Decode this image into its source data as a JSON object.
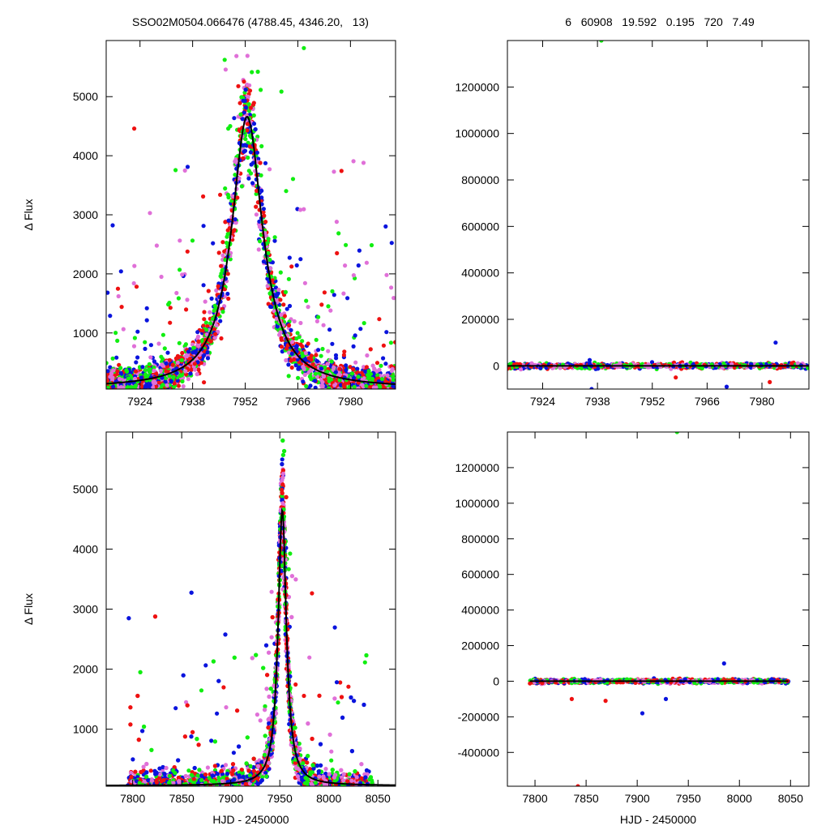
{
  "header": {
    "title_left": "SSO02M0504.066476 (4788.45, 4346.20,   13)",
    "title_right": "6   60908   19.592   0.195   720   7.49"
  },
  "colors": {
    "red": "#ee1111",
    "blue": "#0a14dd",
    "green": "#11ee11",
    "pink": "#e070d8",
    "model": "#000000"
  },
  "chart_data": [
    {
      "type": "scatter",
      "id": "top-left",
      "title": "",
      "xlabel": "",
      "ylabel": "Δ Flux",
      "xlim": [
        7915,
        7992
      ],
      "ylim": [
        50,
        5950
      ],
      "xticks": [
        7924,
        7938,
        7952,
        7966,
        7980
      ],
      "yticks": [
        1000,
        2000,
        3000,
        4000,
        5000
      ],
      "model": {
        "shape": "lorentzian",
        "t0": 7952.5,
        "peak": 4600,
        "baseline": 60,
        "half_width": 5.0
      },
      "series_colors": [
        "red",
        "blue",
        "green",
        "pink"
      ],
      "note": "dense photometric points"
    },
    {
      "type": "scatter",
      "id": "top-right",
      "title": "",
      "xlabel": "",
      "ylabel": "",
      "xlim": [
        7915,
        7992
      ],
      "ylim": [
        -100000,
        1400000
      ],
      "xticks": [
        7924,
        7938,
        7952,
        7966,
        7980
      ],
      "yticks": [
        0,
        200000,
        400000,
        600000,
        800000,
        1000000,
        1200000
      ],
      "outliers": [
        {
          "x": 7939,
          "y": 1400000,
          "color": "green"
        },
        {
          "x": 7936.5,
          "y": -100000,
          "color": "blue"
        },
        {
          "x": 7971,
          "y": -90000,
          "color": "blue"
        },
        {
          "x": 7983.5,
          "y": 100000,
          "color": "blue"
        },
        {
          "x": 7982,
          "y": -70000,
          "color": "red"
        },
        {
          "x": 7936,
          "y": 25000,
          "color": "blue"
        },
        {
          "x": 7958,
          "y": -50000,
          "color": "red"
        }
      ]
    },
    {
      "type": "scatter",
      "id": "bottom-left",
      "title": "",
      "xlabel": "HJD - 2450000",
      "ylabel": "Δ Flux",
      "xlim": [
        7773,
        8068
      ],
      "ylim": [
        50,
        5950
      ],
      "xticks": [
        7800,
        7850,
        7900,
        7950,
        8000,
        8050
      ],
      "yticks": [
        1000,
        2000,
        3000,
        4000,
        5000
      ],
      "model": {
        "shape": "lorentzian",
        "t0": 7952.5,
        "peak": 4600,
        "baseline": 60,
        "half_width": 5.0
      },
      "data_range": [
        7795,
        8045
      ],
      "series_colors": [
        "red",
        "blue",
        "green",
        "pink"
      ]
    },
    {
      "type": "scatter",
      "id": "bottom-right",
      "title": "",
      "xlabel": "HJD - 2450000",
      "ylabel": "",
      "xlim": [
        7773,
        8068
      ],
      "ylim": [
        -590000,
        1400000
      ],
      "xticks": [
        7800,
        7850,
        7900,
        7950,
        8000,
        8050
      ],
      "yticks": [
        -400000,
        -200000,
        0,
        200000,
        400000,
        600000,
        800000,
        1000000,
        1200000
      ],
      "outliers": [
        {
          "x": 7939,
          "y": 1400000,
          "color": "green"
        },
        {
          "x": 7842,
          "y": -590000,
          "color": "red"
        },
        {
          "x": 7905,
          "y": -180000,
          "color": "blue"
        },
        {
          "x": 7836,
          "y": -100000,
          "color": "red"
        },
        {
          "x": 7985,
          "y": 100000,
          "color": "blue"
        },
        {
          "x": 7869,
          "y": -110000,
          "color": "red"
        },
        {
          "x": 7928,
          "y": -100000,
          "color": "blue"
        }
      ]
    }
  ]
}
